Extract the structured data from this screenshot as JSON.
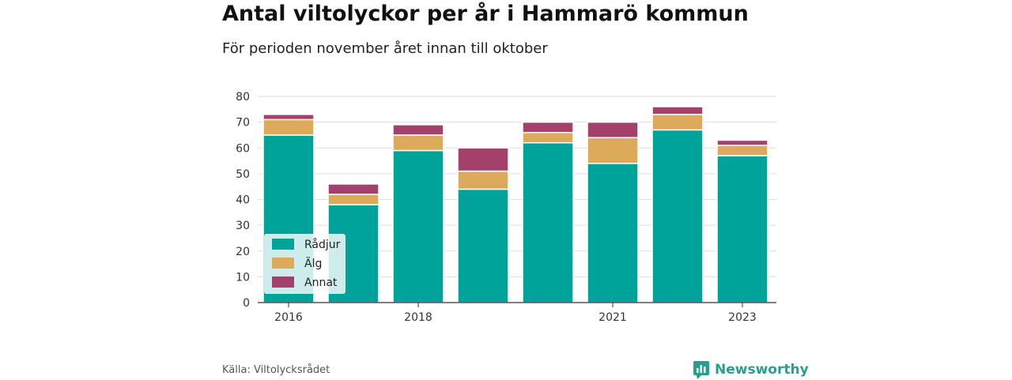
{
  "title": "Antal viltolyckor per år i Hammarö kommun",
  "subtitle": "För perioden november året innan till oktober",
  "source": "Källa: Viltolycksrådet",
  "brand": "Newsworthy",
  "chart_data": {
    "type": "bar",
    "stacked": true,
    "categories": [
      "2016",
      "2017",
      "2018",
      "2019",
      "2020",
      "2021",
      "2022",
      "2023"
    ],
    "x_tick_labels": [
      "2016",
      "2018",
      "2021",
      "2023"
    ],
    "series": [
      {
        "name": "Rådjur",
        "color": "#00a39a",
        "values": [
          65,
          38,
          59,
          44,
          62,
          54,
          67,
          57
        ]
      },
      {
        "name": "Älg",
        "color": "#dcaa5a",
        "values": [
          6,
          4,
          6,
          7,
          4,
          10,
          6,
          4
        ]
      },
      {
        "name": "Annat",
        "color": "#a4416a",
        "values": [
          2,
          4,
          4,
          9,
          4,
          6,
          3,
          2
        ]
      }
    ],
    "ylim": [
      0,
      80
    ],
    "y_ticks": [
      0,
      10,
      20,
      30,
      40,
      50,
      60,
      70,
      80
    ],
    "grid": true,
    "legend_position": "bottom-left"
  }
}
